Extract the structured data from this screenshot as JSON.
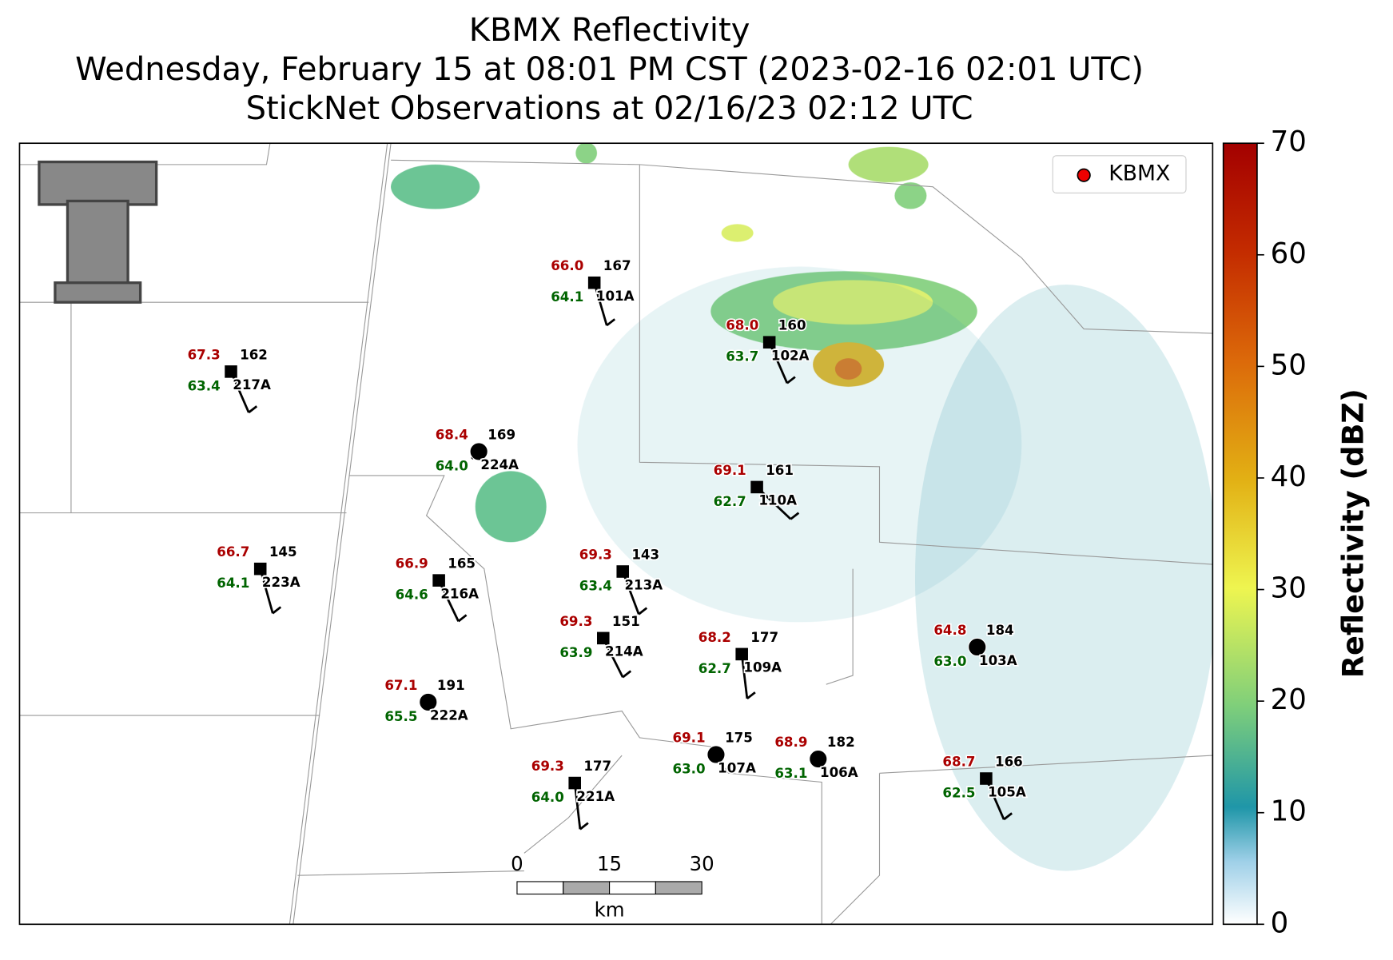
{
  "title_lines": [
    "KBMX Reflectivity",
    "Wednesday, February 15 at 08:01 PM CST (2023-02-16 02:01 UTC)",
    "StickNet Observations at 02/16/23 02:12 UTC"
  ],
  "legend": "KBMX",
  "colorbar": {
    "label": "Reflectivity (dBZ)",
    "ylim": [
      0,
      70
    ],
    "yticks": [
      0,
      10,
      20,
      30,
      40,
      50,
      60,
      70
    ]
  },
  "scale_bar": {
    "ticks": [
      0,
      15,
      30
    ],
    "unit": "km"
  },
  "temperature_color": "#aa0000",
  "dewpoint_color": "#006400",
  "stations": [
    {
      "id": "101A",
      "temperature": 66.0,
      "temperature_label": "66.0",
      "dewpoint": 64.1,
      "number": 167,
      "marker": "square"
    },
    {
      "id": "102A",
      "temperature": 68.0,
      "temperature_label": "68.0",
      "dewpoint": 63.7,
      "number": 160,
      "marker": "square"
    },
    {
      "id": "217A",
      "temperature": 67.3,
      "temperature_label": "67.3",
      "dewpoint": 63.4,
      "number": 162,
      "marker": "square"
    },
    {
      "id": "224A",
      "temperature": 68.4,
      "temperature_label": "68.4",
      "dewpoint": 64.0,
      "dewpoint_label": "64.0",
      "number": 169,
      "marker": "circle"
    },
    {
      "id": "110A",
      "temperature": 69.1,
      "temperature_label": "69.1",
      "dewpoint": 62.7,
      "number": 161,
      "marker": "square"
    },
    {
      "id": "223A",
      "temperature": 66.7,
      "temperature_label": "66.7",
      "dewpoint": 64.1,
      "number": 145,
      "marker": "square"
    },
    {
      "id": "216A",
      "temperature": 66.9,
      "temperature_label": "66.9",
      "dewpoint": 64.6,
      "number": 165,
      "marker": "square"
    },
    {
      "id": "213A",
      "temperature": 69.3,
      "temperature_label": "69.3",
      "dewpoint": 63.4,
      "number": 143,
      "marker": "square"
    },
    {
      "id": "214A",
      "temperature": 69.3,
      "temperature_label": "69.3",
      "dewpoint": 63.9,
      "number": 151,
      "marker": "square"
    },
    {
      "id": "109A",
      "temperature": 68.2,
      "temperature_label": "68.2",
      "dewpoint": 62.7,
      "number": 177,
      "marker": "square"
    },
    {
      "id": "103A",
      "temperature": 64.8,
      "temperature_label": "64.8",
      "dewpoint": 63.0,
      "dewpoint_label": "63.0",
      "number": 184,
      "marker": "circle"
    },
    {
      "id": "222A",
      "temperature": 67.1,
      "temperature_label": "67.1",
      "dewpoint": 65.5,
      "number": 191,
      "marker": "circle"
    },
    {
      "id": "107A",
      "temperature": 69.1,
      "temperature_label": "69.1",
      "dewpoint": 63.0,
      "dewpoint_label": "63.0",
      "number": 175,
      "marker": "circle"
    },
    {
      "id": "106A",
      "temperature": 68.9,
      "temperature_label": "68.9",
      "dewpoint": 63.1,
      "number": 182,
      "marker": "circle"
    },
    {
      "id": "221A",
      "temperature": 69.3,
      "temperature_label": "69.3",
      "dewpoint": 64.0,
      "dewpoint_label": "64.0",
      "number": 177,
      "marker": "square"
    },
    {
      "id": "105A",
      "temperature": 68.7,
      "temperature_label": "68.7",
      "dewpoint": 62.5,
      "number": 166,
      "marker": "square"
    }
  ]
}
